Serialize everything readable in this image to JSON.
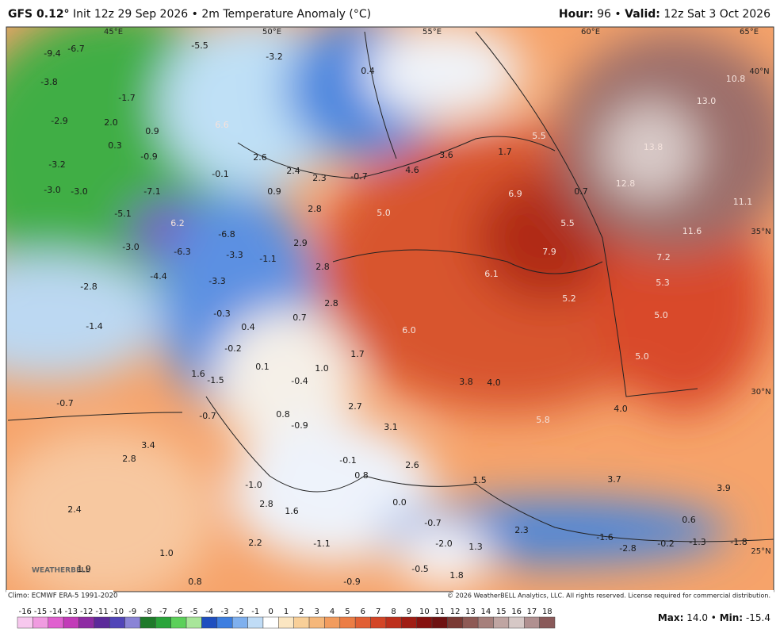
{
  "header": {
    "model": "GFS 0.12°",
    "init": "Init 12z 29 Sep 2026",
    "separator": "•",
    "field": "2m Temperature Anomaly (°C)",
    "hour_label": "Hour:",
    "hour": "96",
    "valid_label": "Valid:",
    "valid": "12z Sat 3 Oct 2026"
  },
  "map": {
    "grid_labels": [
      "45°E",
      "50°E",
      "55°E",
      "60°E",
      "65°E",
      "40°N",
      "35°N",
      "30°N",
      "25°N"
    ],
    "labels": [
      "-9.4",
      "-6.7",
      "-5.5",
      "-3.2",
      "0.4",
      "10.8",
      "-3.8",
      "-1.7",
      "13.0",
      "-2.9",
      "2.0",
      "6.6",
      "0.9",
      "5.5",
      "0.3",
      "-0.9",
      "1.7",
      "3.6",
      "13.8",
      "2.6",
      "-3.2",
      "-0.1",
      "2.4",
      "2.3",
      "-0.7",
      "4.6",
      "-3.0",
      "-3.0",
      "-7.1",
      "0.9",
      "6.9",
      "0.7",
      "12.8",
      "11.1",
      "-5.1",
      "2.8",
      "5.0",
      "6.2",
      "5.5",
      "11.6",
      "-6.8",
      "-3.0",
      "2.9",
      "-6.3",
      "-3.3",
      "-1.1",
      "7.9",
      "7.2",
      "2.8",
      "6.1",
      "5.3",
      "-4.4",
      "-2.8",
      "-3.3",
      "5.2",
      "2.8",
      "-0.3",
      "5.0",
      "-1.4",
      "0.4",
      "0.7",
      "6.0",
      "-0.2",
      "1.7",
      "5.0",
      "0.1",
      "1.0",
      "1.6",
      "-1.5",
      "-0.4",
      "3.8",
      "4.0",
      "-0.7",
      "2.7",
      "4.0",
      "-0.7",
      "0.8",
      "-0.9",
      "3.1",
      "5.8",
      "3.4",
      "2.8",
      "-0.1",
      "2.6",
      "0.8",
      "1.5",
      "3.7",
      "3.9",
      "-1.0",
      "2.8",
      "1.6",
      "0.0",
      "-0.7",
      "2.4",
      "0.6",
      "2.3",
      "-1.6",
      "2.2",
      "-1.1",
      "-2.0",
      "1.3",
      "-2.8",
      "-0.2",
      "-1.3",
      "-1.8",
      "1.0",
      "1.9",
      "-0.5",
      "1.8",
      "0.8",
      "-0.9"
    ]
  },
  "footer": {
    "climo": "Climo: ECMWF ERA-5 1991-2020",
    "copyright": "© 2026 WeatherBELL Analytics, LLC. All rights reserved. License required for commercial distribution.",
    "max_label": "Max:",
    "max": "14.0",
    "separator": "•",
    "min_label": "Min:",
    "min": "-15.4",
    "logo": "WEATHERBELL"
  },
  "colorbar": {
    "ticks": [
      -16,
      -15,
      -14,
      -13,
      -12,
      -11,
      -10,
      -9,
      -8,
      -7,
      -6,
      -5,
      -4,
      -3,
      -2,
      -1,
      0,
      1,
      2,
      3,
      4,
      5,
      6,
      7,
      8,
      9,
      10,
      11,
      12,
      13,
      14,
      15,
      16,
      17,
      18
    ],
    "colors": [
      "#f7c8ee",
      "#f09be0",
      "#e060cf",
      "#c23bb8",
      "#8e2ca3",
      "#5c2a9a",
      "#5145b8",
      "#8a84d6",
      "#1f7a2a",
      "#2aa43a",
      "#5cd05a",
      "#a8e69a",
      "#1f4fbf",
      "#3d7ee0",
      "#7fb0ee",
      "#c0dcf6",
      "#ffffff",
      "#fbe6c2",
      "#f8cf98",
      "#f5b77a",
      "#f29c5e",
      "#ec7d45",
      "#e15f34",
      "#d34526",
      "#bd2f1c",
      "#a01d14",
      "#86110f",
      "#6e1212",
      "#7a3a34",
      "#8e5a55",
      "#a6807c",
      "#bfa5a2",
      "#d6c8c6",
      "#b09090",
      "#8a5a5a"
    ]
  }
}
